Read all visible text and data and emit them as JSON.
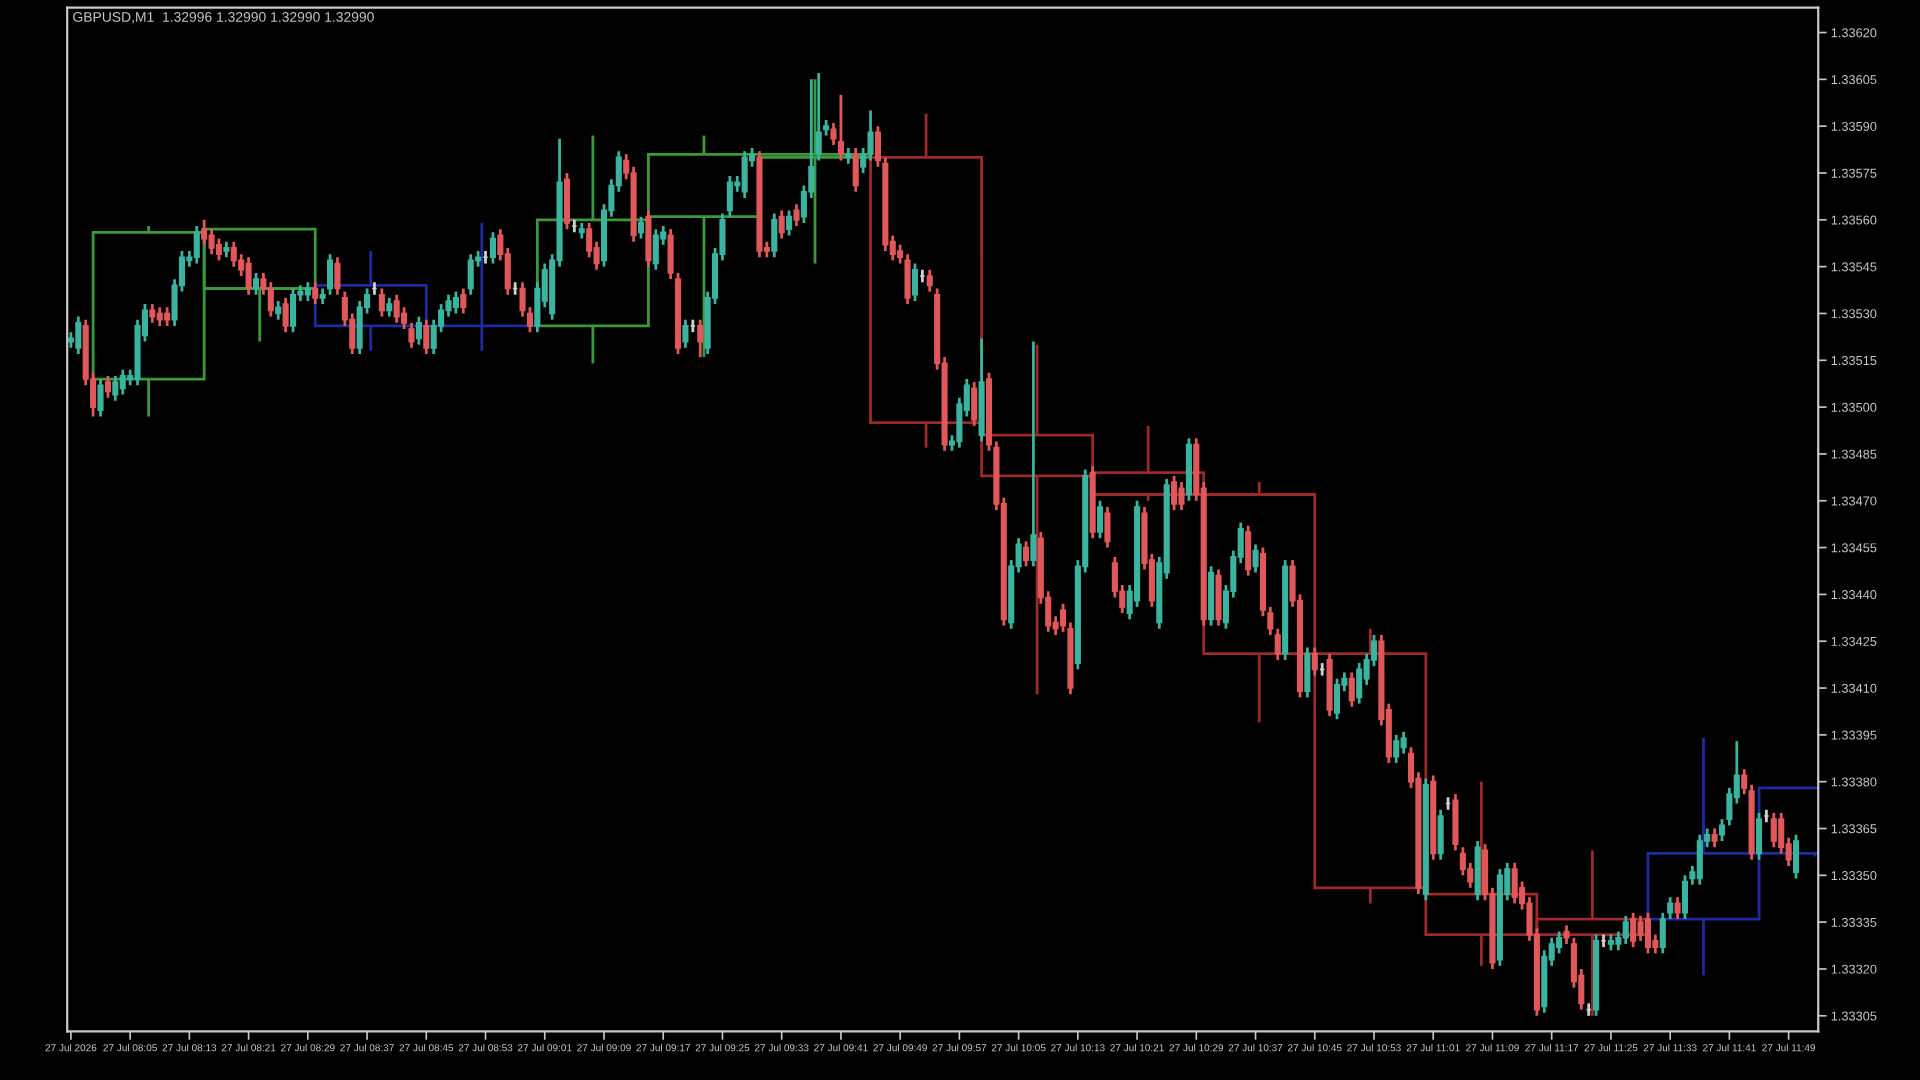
{
  "chart_data": {
    "type": "candlestick",
    "title": "GBPUSD,M1  1.32996 1.32990 1.32990 1.32990",
    "x": [
      "2026-07-27T07:57",
      "2026-07-27T07:58",
      "2026-07-27T07:59",
      "2026-07-27T08:00",
      "2026-07-27T08:01",
      "2026-07-27T08:02",
      "2026-07-27T08:03",
      "2026-07-27T08:04",
      "2026-07-27T08:05",
      "2026-07-27T08:06",
      "2026-07-27T08:07",
      "2026-07-27T08:08",
      "2026-07-27T08:09",
      "2026-07-27T08:10",
      "2026-07-27T08:11",
      "2026-07-27T08:12",
      "2026-07-27T08:13",
      "2026-07-27T08:14",
      "2026-07-27T08:15",
      "2026-07-27T08:16",
      "2026-07-27T08:17",
      "2026-07-27T08:18",
      "2026-07-27T08:19",
      "2026-07-27T08:20",
      "2026-07-27T08:21",
      "2026-07-27T08:22",
      "2026-07-27T08:23",
      "2026-07-27T08:24",
      "2026-07-27T08:25",
      "2026-07-27T08:26",
      "2026-07-27T08:27",
      "2026-07-27T08:28",
      "2026-07-27T08:29",
      "2026-07-27T08:30",
      "2026-07-27T08:31",
      "2026-07-27T08:32",
      "2026-07-27T08:33",
      "2026-07-27T08:34",
      "2026-07-27T08:35",
      "2026-07-27T08:36",
      "2026-07-27T08:37",
      "2026-07-27T08:38",
      "2026-07-27T08:39",
      "2026-07-27T08:40",
      "2026-07-27T08:41",
      "2026-07-27T08:42",
      "2026-07-27T08:43",
      "2026-07-27T08:44",
      "2026-07-27T08:45",
      "2026-07-27T08:46",
      "2026-07-27T08:47",
      "2026-07-27T08:48",
      "2026-07-27T08:49",
      "2026-07-27T08:50",
      "2026-07-27T08:51",
      "2026-07-27T08:52",
      "2026-07-27T08:53",
      "2026-07-27T08:54",
      "2026-07-27T08:55",
      "2026-07-27T08:56",
      "2026-07-27T08:57",
      "2026-07-27T08:58",
      "2026-07-27T08:59",
      "2026-07-27T09:00",
      "2026-07-27T09:01",
      "2026-07-27T09:02",
      "2026-07-27T09:03",
      "2026-07-27T09:04",
      "2026-07-27T09:05",
      "2026-07-27T09:06",
      "2026-07-27T09:07",
      "2026-07-27T09:08",
      "2026-07-27T09:09",
      "2026-07-27T09:10",
      "2026-07-27T09:11",
      "2026-07-27T09:12",
      "2026-07-27T09:13",
      "2026-07-27T09:14",
      "2026-07-27T09:15",
      "2026-07-27T09:16",
      "2026-07-27T09:17",
      "2026-07-27T09:18",
      "2026-07-27T09:19",
      "2026-07-27T09:20",
      "2026-07-27T09:21",
      "2026-07-27T09:22",
      "2026-07-27T09:23",
      "2026-07-27T09:24",
      "2026-07-27T09:25",
      "2026-07-27T09:26",
      "2026-07-27T09:27",
      "2026-07-27T09:28",
      "2026-07-27T09:29",
      "2026-07-27T09:30",
      "2026-07-27T09:31",
      "2026-07-27T09:32",
      "2026-07-27T09:33",
      "2026-07-27T09:34",
      "2026-07-27T09:35",
      "2026-07-27T09:36",
      "2026-07-27T09:37",
      "2026-07-27T09:38",
      "2026-07-27T09:39",
      "2026-07-27T09:40",
      "2026-07-27T09:41",
      "2026-07-27T09:42",
      "2026-07-27T09:43",
      "2026-07-27T09:44",
      "2026-07-27T09:45",
      "2026-07-27T09:46",
      "2026-07-27T09:47",
      "2026-07-27T09:48",
      "2026-07-27T09:49",
      "2026-07-27T09:50",
      "2026-07-27T09:51",
      "2026-07-27T09:52",
      "2026-07-27T09:53",
      "2026-07-27T09:54",
      "2026-07-27T09:55",
      "2026-07-27T09:56",
      "2026-07-27T09:57",
      "2026-07-27T09:58",
      "2026-07-27T09:59",
      "2026-07-27T10:00",
      "2026-07-27T10:01",
      "2026-07-27T10:02",
      "2026-07-27T10:03",
      "2026-07-27T10:04",
      "2026-07-27T10:05",
      "2026-07-27T10:06",
      "2026-07-27T10:07",
      "2026-07-27T10:08",
      "2026-07-27T10:09",
      "2026-07-27T10:10",
      "2026-07-27T10:11",
      "2026-07-27T10:12",
      "2026-07-27T10:13",
      "2026-07-27T10:14",
      "2026-07-27T10:15",
      "2026-07-27T10:16",
      "2026-07-27T10:17",
      "2026-07-27T10:18",
      "2026-07-27T10:19",
      "2026-07-27T10:20",
      "2026-07-27T10:21",
      "2026-07-27T10:22",
      "2026-07-27T10:23",
      "2026-07-27T10:24",
      "2026-07-27T10:25",
      "2026-07-27T10:26",
      "2026-07-27T10:27",
      "2026-07-27T10:28",
      "2026-07-27T10:29",
      "2026-07-27T10:30",
      "2026-07-27T10:31",
      "2026-07-27T10:32",
      "2026-07-27T10:33",
      "2026-07-27T10:34",
      "2026-07-27T10:35",
      "2026-07-27T10:36",
      "2026-07-27T10:37",
      "2026-07-27T10:38",
      "2026-07-27T10:39",
      "2026-07-27T10:40",
      "2026-07-27T10:41",
      "2026-07-27T10:42",
      "2026-07-27T10:43",
      "2026-07-27T10:44",
      "2026-07-27T10:45",
      "2026-07-27T10:46",
      "2026-07-27T10:47",
      "2026-07-27T10:48",
      "2026-07-27T10:49",
      "2026-07-27T10:50",
      "2026-07-27T10:51",
      "2026-07-27T10:52",
      "2026-07-27T10:53",
      "2026-07-27T10:54",
      "2026-07-27T10:55",
      "2026-07-27T10:56",
      "2026-07-27T10:57",
      "2026-07-27T10:58",
      "2026-07-27T10:59",
      "2026-07-27T11:00",
      "2026-07-27T11:01",
      "2026-07-27T11:02",
      "2026-07-27T11:03",
      "2026-07-27T11:04",
      "2026-07-27T11:05",
      "2026-07-27T11:06",
      "2026-07-27T11:07",
      "2026-07-27T11:08",
      "2026-07-27T11:09",
      "2026-07-27T11:10",
      "2026-07-27T11:11",
      "2026-07-27T11:12",
      "2026-07-27T11:13",
      "2026-07-27T11:14",
      "2026-07-27T11:15",
      "2026-07-27T11:16",
      "2026-07-27T11:17",
      "2026-07-27T11:18",
      "2026-07-27T11:19",
      "2026-07-27T11:20",
      "2026-07-27T11:21",
      "2026-07-27T11:22",
      "2026-07-27T11:23",
      "2026-07-27T11:24",
      "2026-07-27T11:25",
      "2026-07-27T11:26",
      "2026-07-27T11:27",
      "2026-07-27T11:28",
      "2026-07-27T11:29",
      "2026-07-27T11:30",
      "2026-07-27T11:31",
      "2026-07-27T11:32",
      "2026-07-27T11:33",
      "2026-07-27T11:34",
      "2026-07-27T11:35",
      "2026-07-27T11:36",
      "2026-07-27T11:37",
      "2026-07-27T11:38",
      "2026-07-27T11:39",
      "2026-07-27T11:40",
      "2026-07-27T11:41",
      "2026-07-27T11:42",
      "2026-07-27T11:43",
      "2026-07-27T11:44",
      "2026-07-27T11:45",
      "2026-07-27T11:46",
      "2026-07-27T11:47",
      "2026-07-27T11:48",
      "2026-07-27T11:49",
      "2026-07-27T11:50"
    ],
    "ohlc": [
      [
        1.33521,
        1.33524,
        1.33519,
        1.33522
      ],
      [
        1.33519,
        1.33529,
        1.33517,
        1.33527
      ],
      [
        1.33526,
        1.33528,
        1.33507,
        1.33509
      ],
      [
        1.33509,
        1.33511,
        1.33497,
        1.335
      ],
      [
        1.33499,
        1.33509,
        1.33497,
        1.33507
      ],
      [
        1.33508,
        1.3351,
        1.33503,
        1.33505
      ],
      [
        1.33504,
        1.3351,
        1.33502,
        1.33508
      ],
      [
        1.33506,
        1.33512,
        1.33504,
        1.3351
      ],
      [
        1.33509,
        1.33512,
        1.33507,
        1.3351
      ],
      [
        1.33509,
        1.33528,
        1.33507,
        1.33526
      ],
      [
        1.33523,
        1.33533,
        1.33521,
        1.33531
      ],
      [
        1.33531,
        1.33533,
        1.33527,
        1.33529
      ],
      [
        1.3353,
        1.33532,
        1.33526,
        1.33528
      ],
      [
        1.3353,
        1.33532,
        1.33526,
        1.33528
      ],
      [
        1.33528,
        1.33541,
        1.33526,
        1.33539
      ],
      [
        1.33539,
        1.3355,
        1.33537,
        1.33548
      ],
      [
        1.33547,
        1.3355,
        1.33545,
        1.33548
      ],
      [
        1.33548,
        1.33558,
        1.33546,
        1.33556
      ],
      [
        1.33557,
        1.3356,
        1.33552,
        1.33554
      ],
      [
        1.33555,
        1.33557,
        1.33549,
        1.33551
      ],
      [
        1.33552,
        1.33554,
        1.33547,
        1.33549
      ],
      [
        1.3355,
        1.33553,
        1.33548,
        1.33551
      ],
      [
        1.33551,
        1.33553,
        1.33545,
        1.33547
      ],
      [
        1.33547,
        1.33549,
        1.33542,
        1.33544
      ],
      [
        1.33546,
        1.33548,
        1.33536,
        1.33538
      ],
      [
        1.33538,
        1.33543,
        1.33536,
        1.33541
      ],
      [
        1.33541,
        1.33543,
        1.33536,
        1.33538
      ],
      [
        1.33538,
        1.3354,
        1.33529,
        1.33531
      ],
      [
        1.3353,
        1.33534,
        1.33528,
        1.33532
      ],
      [
        1.33533,
        1.33535,
        1.33524,
        1.33526
      ],
      [
        1.33526,
        1.33538,
        1.33524,
        1.33536
      ],
      [
        1.33536,
        1.33539,
        1.33534,
        1.33537
      ],
      [
        1.33536,
        1.3354,
        1.33534,
        1.33538
      ],
      [
        1.33538,
        1.3354,
        1.33533,
        1.33535
      ],
      [
        1.33535,
        1.33538,
        1.33533,
        1.33536
      ],
      [
        1.33538,
        1.33549,
        1.33536,
        1.33547
      ],
      [
        1.33546,
        1.33548,
        1.33536,
        1.33538
      ],
      [
        1.33535,
        1.33537,
        1.33526,
        1.33528
      ],
      [
        1.33528,
        1.3353,
        1.33517,
        1.33519
      ],
      [
        1.33519,
        1.33534,
        1.33517,
        1.33532
      ],
      [
        1.33532,
        1.33538,
        1.3353,
        1.33536
      ],
      [
        1.33538,
        1.3354,
        1.33536,
        1.33538
      ],
      [
        1.33536,
        1.33538,
        1.33529,
        1.33531
      ],
      [
        1.33531,
        1.33535,
        1.33529,
        1.33533
      ],
      [
        1.33534,
        1.33536,
        1.33527,
        1.33529
      ],
      [
        1.3353,
        1.33532,
        1.33525,
        1.33527
      ],
      [
        1.33525,
        1.33527,
        1.33519,
        1.33521
      ],
      [
        1.33522,
        1.33529,
        1.3352,
        1.33527
      ],
      [
        1.33526,
        1.33528,
        1.33517,
        1.33519
      ],
      [
        1.33519,
        1.33528,
        1.33517,
        1.33526
      ],
      [
        1.33526,
        1.33533,
        1.33524,
        1.33531
      ],
      [
        1.33531,
        1.33536,
        1.33529,
        1.33534
      ],
      [
        1.33532,
        1.33537,
        1.3353,
        1.33535
      ],
      [
        1.33536,
        1.33538,
        1.3353,
        1.33532
      ],
      [
        1.33538,
        1.33549,
        1.33536,
        1.33547
      ],
      [
        1.33547,
        1.3355,
        1.33545,
        1.33548
      ],
      [
        1.33548,
        1.3355,
        1.33546,
        1.33548
      ],
      [
        1.33548,
        1.33556,
        1.33546,
        1.33554
      ],
      [
        1.33555,
        1.33557,
        1.33547,
        1.33549
      ],
      [
        1.33549,
        1.33551,
        1.33536,
        1.33538
      ],
      [
        1.33538,
        1.3354,
        1.33536,
        1.33538
      ],
      [
        1.33538,
        1.3354,
        1.33529,
        1.33531
      ],
      [
        1.3353,
        1.33532,
        1.33524,
        1.33526
      ],
      [
        1.33526,
        1.3354,
        1.33524,
        1.33538
      ],
      [
        1.33534,
        1.33546,
        1.33532,
        1.33544
      ],
      [
        1.3353,
        1.33549,
        1.33528,
        1.33547
      ],
      [
        1.33547,
        1.33586,
        1.33545,
        1.33572
      ],
      [
        1.33573,
        1.33575,
        1.33557,
        1.33559
      ],
      [
        1.33558,
        1.3356,
        1.33556,
        1.33558
      ],
      [
        1.33556,
        1.33559,
        1.33554,
        1.33557
      ],
      [
        1.33557,
        1.33559,
        1.33548,
        1.3355
      ],
      [
        1.33551,
        1.33553,
        1.33544,
        1.33546
      ],
      [
        1.33547,
        1.33565,
        1.33545,
        1.33563
      ],
      [
        1.33563,
        1.33573,
        1.33561,
        1.33571
      ],
      [
        1.33571,
        1.33582,
        1.33569,
        1.3358
      ],
      [
        1.33579,
        1.33581,
        1.33573,
        1.33575
      ],
      [
        1.33575,
        1.33577,
        1.33553,
        1.33555
      ],
      [
        1.33556,
        1.33561,
        1.33554,
        1.33559
      ],
      [
        1.33561,
        1.33563,
        1.33545,
        1.33547
      ],
      [
        1.33546,
        1.33557,
        1.33544,
        1.33555
      ],
      [
        1.33554,
        1.33558,
        1.33552,
        1.33556
      ],
      [
        1.33555,
        1.33557,
        1.33541,
        1.33543
      ],
      [
        1.33541,
        1.33543,
        1.33517,
        1.33519
      ],
      [
        1.33521,
        1.33528,
        1.33519,
        1.33526
      ],
      [
        1.33526,
        1.33528,
        1.33524,
        1.33526
      ],
      [
        1.33526,
        1.33528,
        1.33516,
        1.33521
      ],
      [
        1.33519,
        1.33537,
        1.33517,
        1.33535
      ],
      [
        1.33535,
        1.33551,
        1.33533,
        1.33549
      ],
      [
        1.33549,
        1.33562,
        1.33547,
        1.3356
      ],
      [
        1.33563,
        1.33574,
        1.33561,
        1.33572
      ],
      [
        1.33571,
        1.33574,
        1.33569,
        1.33572
      ],
      [
        1.33569,
        1.33582,
        1.33567,
        1.3358
      ],
      [
        1.33579,
        1.33583,
        1.33577,
        1.33581
      ],
      [
        1.3358,
        1.33582,
        1.33548,
        1.3355
      ],
      [
        1.33551,
        1.33553,
        1.33548,
        1.3355
      ],
      [
        1.3355,
        1.33562,
        1.33548,
        1.3356
      ],
      [
        1.33561,
        1.33563,
        1.33554,
        1.33556
      ],
      [
        1.33557,
        1.33563,
        1.33555,
        1.33561
      ],
      [
        1.33563,
        1.33565,
        1.33558,
        1.3356
      ],
      [
        1.33561,
        1.33571,
        1.33559,
        1.33569
      ],
      [
        1.33569,
        1.33605,
        1.33567,
        1.33577
      ],
      [
        1.33581,
        1.33607,
        1.33579,
        1.33588
      ],
      [
        1.33589,
        1.33592,
        1.33587,
        1.3359
      ],
      [
        1.33589,
        1.33591,
        1.33584,
        1.33586
      ],
      [
        1.33585,
        1.336,
        1.33579,
        1.33581
      ],
      [
        1.3358,
        1.33583,
        1.33578,
        1.33581
      ],
      [
        1.33581,
        1.33583,
        1.33569,
        1.33571
      ],
      [
        1.33577,
        1.33583,
        1.33575,
        1.33581
      ],
      [
        1.33581,
        1.33595,
        1.33579,
        1.33588
      ],
      [
        1.33588,
        1.3359,
        1.33577,
        1.33579
      ],
      [
        1.33578,
        1.3358,
        1.3355,
        1.33552
      ],
      [
        1.33553,
        1.33555,
        1.33547,
        1.33549
      ],
      [
        1.3355,
        1.33552,
        1.33546,
        1.33548
      ],
      [
        1.33547,
        1.33549,
        1.33533,
        1.33535
      ],
      [
        1.33536,
        1.33546,
        1.33534,
        1.33544
      ],
      [
        1.33542,
        1.33544,
        1.3354,
        1.33542
      ],
      [
        1.33542,
        1.33544,
        1.33537,
        1.33539
      ],
      [
        1.33536,
        1.33538,
        1.33512,
        1.33514
      ],
      [
        1.33514,
        1.33516,
        1.33486,
        1.33488
      ],
      [
        1.33488,
        1.33491,
        1.33486,
        1.33489
      ],
      [
        1.33489,
        1.33503,
        1.33487,
        1.33501
      ],
      [
        1.33499,
        1.33509,
        1.33497,
        1.33507
      ],
      [
        1.33506,
        1.33508,
        1.33494,
        1.33496
      ],
      [
        1.33491,
        1.33522,
        1.33489,
        1.33508
      ],
      [
        1.33509,
        1.33511,
        1.33486,
        1.33488
      ],
      [
        1.33487,
        1.33489,
        1.33467,
        1.33469
      ],
      [
        1.33469,
        1.33471,
        1.3343,
        1.33432
      ],
      [
        1.33431,
        1.33451,
        1.33429,
        1.33449
      ],
      [
        1.33449,
        1.33458,
        1.33447,
        1.33456
      ],
      [
        1.33455,
        1.33457,
        1.33449,
        1.33451
      ],
      [
        1.33451,
        1.33521,
        1.33449,
        1.33459
      ],
      [
        1.33458,
        1.3346,
        1.33437,
        1.33439
      ],
      [
        1.33439,
        1.33441,
        1.33428,
        1.3343
      ],
      [
        1.33431,
        1.33433,
        1.33427,
        1.33429
      ],
      [
        1.33435,
        1.33437,
        1.33428,
        1.3343
      ],
      [
        1.33429,
        1.33431,
        1.33408,
        1.3341
      ],
      [
        1.33418,
        1.33451,
        1.33416,
        1.33449
      ],
      [
        1.33449,
        1.3348,
        1.33447,
        1.33478
      ],
      [
        1.33479,
        1.33481,
        1.33458,
        1.3346
      ],
      [
        1.3346,
        1.3347,
        1.33458,
        1.33468
      ],
      [
        1.33466,
        1.33468,
        1.33455,
        1.33457
      ],
      [
        1.3345,
        1.33452,
        1.33439,
        1.33441
      ],
      [
        1.33441,
        1.33443,
        1.33434,
        1.33436
      ],
      [
        1.33434,
        1.33443,
        1.33432,
        1.33441
      ],
      [
        1.33438,
        1.3347,
        1.33436,
        1.33468
      ],
      [
        1.33466,
        1.33468,
        1.33448,
        1.3345
      ],
      [
        1.33451,
        1.33453,
        1.33436,
        1.33438
      ],
      [
        1.33431,
        1.33452,
        1.33429,
        1.3345
      ],
      [
        1.33447,
        1.33477,
        1.33445,
        1.33475
      ],
      [
        1.33476,
        1.33478,
        1.33467,
        1.33469
      ],
      [
        1.33474,
        1.33476,
        1.33467,
        1.33469
      ],
      [
        1.33472,
        1.3349,
        1.3347,
        1.33488
      ],
      [
        1.33488,
        1.3349,
        1.3347,
        1.33472
      ],
      [
        1.33474,
        1.33476,
        1.3343,
        1.33432
      ],
      [
        1.33432,
        1.33449,
        1.3343,
        1.33447
      ],
      [
        1.33446,
        1.33448,
        1.3343,
        1.33432
      ],
      [
        1.33431,
        1.33443,
        1.33429,
        1.33441
      ],
      [
        1.33441,
        1.33454,
        1.33439,
        1.33452
      ],
      [
        1.33452,
        1.33463,
        1.3345,
        1.33461
      ],
      [
        1.3346,
        1.33462,
        1.33446,
        1.33448
      ],
      [
        1.33449,
        1.33456,
        1.33447,
        1.33454
      ],
      [
        1.33453,
        1.33455,
        1.33433,
        1.33435
      ],
      [
        1.33434,
        1.33436,
        1.33427,
        1.33429
      ],
      [
        1.33427,
        1.33429,
        1.33419,
        1.33421
      ],
      [
        1.33421,
        1.33451,
        1.33419,
        1.33449
      ],
      [
        1.33449,
        1.33451,
        1.33436,
        1.33438
      ],
      [
        1.33438,
        1.3344,
        1.33407,
        1.33409
      ],
      [
        1.33409,
        1.33423,
        1.33407,
        1.33421
      ],
      [
        1.33421,
        1.33423,
        1.33414,
        1.33416
      ],
      [
        1.33416,
        1.33418,
        1.33414,
        1.33416
      ],
      [
        1.33419,
        1.33421,
        1.33401,
        1.33403
      ],
      [
        1.33402,
        1.33413,
        1.334,
        1.33411
      ],
      [
        1.33411,
        1.33415,
        1.33409,
        1.33413
      ],
      [
        1.33413,
        1.33415,
        1.33404,
        1.33406
      ],
      [
        1.33407,
        1.33418,
        1.33405,
        1.33416
      ],
      [
        1.33413,
        1.33421,
        1.33411,
        1.33419
      ],
      [
        1.33419,
        1.33427,
        1.33417,
        1.33425
      ],
      [
        1.33425,
        1.33427,
        1.33398,
        1.334
      ],
      [
        1.33403,
        1.33405,
        1.33386,
        1.33388
      ],
      [
        1.33388,
        1.33395,
        1.33386,
        1.33393
      ],
      [
        1.33391,
        1.33396,
        1.33389,
        1.33394
      ],
      [
        1.33389,
        1.33391,
        1.33378,
        1.3338
      ],
      [
        1.33381,
        1.33383,
        1.33344,
        1.33346
      ],
      [
        1.33344,
        1.33381,
        1.33342,
        1.33379
      ],
      [
        1.3338,
        1.33382,
        1.33355,
        1.33357
      ],
      [
        1.33357,
        1.33371,
        1.33355,
        1.33369
      ],
      [
        1.33373,
        1.33375,
        1.33371,
        1.33373
      ],
      [
        1.33374,
        1.33376,
        1.33358,
        1.3336
      ],
      [
        1.33357,
        1.33359,
        1.3335,
        1.33352
      ],
      [
        1.33352,
        1.33354,
        1.33346,
        1.33348
      ],
      [
        1.33344,
        1.33361,
        1.33342,
        1.33359
      ],
      [
        1.33358,
        1.3336,
        1.33342,
        1.33344
      ],
      [
        1.33344,
        1.33346,
        1.3332,
        1.33322
      ],
      [
        1.33323,
        1.33352,
        1.33321,
        1.3335
      ],
      [
        1.33344,
        1.33354,
        1.33342,
        1.33352
      ],
      [
        1.33352,
        1.33354,
        1.33341,
        1.33343
      ],
      [
        1.33346,
        1.33348,
        1.33339,
        1.33341
      ],
      [
        1.33341,
        1.33343,
        1.33329,
        1.33331
      ],
      [
        1.33331,
        1.33333,
        1.33305,
        1.33307
      ],
      [
        1.33308,
        1.33326,
        1.33306,
        1.33324
      ],
      [
        1.33323,
        1.3333,
        1.33321,
        1.33328
      ],
      [
        1.33327,
        1.33332,
        1.33325,
        1.3333
      ],
      [
        1.33332,
        1.33334,
        1.33328,
        1.3333
      ],
      [
        1.33328,
        1.3333,
        1.33314,
        1.33316
      ],
      [
        1.33318,
        1.3332,
        1.33307,
        1.33309
      ],
      [
        1.33307,
        1.33309,
        1.33305,
        1.33307
      ],
      [
        1.33307,
        1.33331,
        1.33305,
        1.33329
      ],
      [
        1.33329,
        1.33331,
        1.33327,
        1.33329
      ],
      [
        1.33328,
        1.33331,
        1.33326,
        1.33329
      ],
      [
        1.33328,
        1.33332,
        1.33326,
        1.3333
      ],
      [
        1.3333,
        1.33337,
        1.33328,
        1.33335
      ],
      [
        1.33336,
        1.33338,
        1.33327,
        1.33329
      ],
      [
        1.33335,
        1.33337,
        1.33329,
        1.33331
      ],
      [
        1.33336,
        1.33338,
        1.33325,
        1.33327
      ],
      [
        1.33329,
        1.33331,
        1.33325,
        1.33327
      ],
      [
        1.33327,
        1.33338,
        1.33325,
        1.33336
      ],
      [
        1.33338,
        1.33343,
        1.33336,
        1.33341
      ],
      [
        1.33341,
        1.33343,
        1.33336,
        1.33338
      ],
      [
        1.33338,
        1.3335,
        1.33336,
        1.33348
      ],
      [
        1.33349,
        1.33353,
        1.33347,
        1.33351
      ],
      [
        1.33349,
        1.33363,
        1.33347,
        1.33361
      ],
      [
        1.33361,
        1.33365,
        1.33359,
        1.33363
      ],
      [
        1.33363,
        1.33365,
        1.33359,
        1.33361
      ],
      [
        1.33363,
        1.33368,
        1.33361,
        1.33366
      ],
      [
        1.33368,
        1.33378,
        1.33366,
        1.33376
      ],
      [
        1.33375,
        1.33393,
        1.33373,
        1.33382
      ],
      [
        1.33382,
        1.33384,
        1.33376,
        1.33378
      ],
      [
        1.33377,
        1.33379,
        1.33355,
        1.33357
      ],
      [
        1.33357,
        1.3337,
        1.33355,
        1.33368
      ],
      [
        1.33369,
        1.33371,
        1.33367,
        1.33369
      ],
      [
        1.33368,
        1.3337,
        1.33359,
        1.33361
      ],
      [
        1.33368,
        1.3337,
        1.33357,
        1.33359
      ],
      [
        1.3336,
        1.33362,
        1.33353,
        1.33355
      ],
      [
        1.33351,
        1.33363,
        1.33349,
        1.33361
      ]
    ],
    "colors": [
      "#3bb39f",
      "#3bb39f",
      "#e0585a",
      "#e0585a",
      "#3bb39f",
      "#e0585a",
      "#3bb39f",
      "#3bb39f",
      "#3bb39f",
      "#3bb39f",
      "#3bb39f",
      "#e0585a",
      "#e0585a",
      "#e0585a",
      "#3bb39f",
      "#3bb39f",
      "#3bb39f",
      "#3bb39f",
      "#e0585a",
      "#e0585a",
      "#e0585a",
      "#3bb39f",
      "#e0585a",
      "#e0585a",
      "#e0585a",
      "#3bb39f",
      "#e0585a",
      "#e0585a",
      "#3bb39f",
      "#e0585a",
      "#3bb39f",
      "#3bb39f",
      "#3bb39f",
      "#e0585a",
      "#3bb39f",
      "#3bb39f",
      "#e0585a",
      "#e0585a",
      "#e0585a",
      "#3bb39f",
      "#3bb39f",
      "#d0d0d0",
      "#e0585a",
      "#3bb39f",
      "#e0585a",
      "#e0585a",
      "#e0585a",
      "#3bb39f",
      "#e0585a",
      "#3bb39f",
      "#3bb39f",
      "#3bb39f",
      "#3bb39f",
      "#e0585a",
      "#3bb39f",
      "#3bb39f",
      "#d0d0d0",
      "#3bb39f",
      "#e0585a",
      "#e0585a",
      "#d0d0d0",
      "#e0585a",
      "#e0585a",
      "#3bb39f",
      "#3bb39f",
      "#3bb39f",
      "#3bb39f",
      "#e0585a",
      "#d0d0d0",
      "#3bb39f",
      "#e0585a",
      "#e0585a",
      "#3bb39f",
      "#3bb39f",
      "#3bb39f",
      "#e0585a",
      "#e0585a",
      "#3bb39f",
      "#e0585a",
      "#3bb39f",
      "#3bb39f",
      "#e0585a",
      "#e0585a",
      "#3bb39f",
      "#d0d0d0",
      "#e0585a",
      "#3bb39f",
      "#3bb39f",
      "#3bb39f",
      "#3bb39f",
      "#3bb39f",
      "#3bb39f",
      "#3bb39f",
      "#e0585a",
      "#e0585a",
      "#3bb39f",
      "#e0585a",
      "#3bb39f",
      "#e0585a",
      "#3bb39f",
      "#3bb39f",
      "#3bb39f",
      "#3bb39f",
      "#e0585a",
      "#e0585a",
      "#3bb39f",
      "#e0585a",
      "#3bb39f",
      "#3bb39f",
      "#e0585a",
      "#e0585a",
      "#e0585a",
      "#e0585a",
      "#e0585a",
      "#3bb39f",
      "#d0d0d0",
      "#e0585a",
      "#e0585a",
      "#e0585a",
      "#3bb39f",
      "#3bb39f",
      "#3bb39f",
      "#e0585a",
      "#3bb39f",
      "#e0585a",
      "#e0585a",
      "#e0585a",
      "#3bb39f",
      "#3bb39f",
      "#e0585a",
      "#3bb39f",
      "#e0585a",
      "#e0585a",
      "#e0585a",
      "#e0585a",
      "#e0585a",
      "#3bb39f",
      "#3bb39f",
      "#e0585a",
      "#3bb39f",
      "#e0585a",
      "#e0585a",
      "#e0585a",
      "#3bb39f",
      "#3bb39f",
      "#e0585a",
      "#e0585a",
      "#3bb39f",
      "#3bb39f",
      "#e0585a",
      "#e0585a",
      "#3bb39f",
      "#e0585a",
      "#e0585a",
      "#3bb39f",
      "#e0585a",
      "#3bb39f",
      "#3bb39f",
      "#3bb39f",
      "#e0585a",
      "#3bb39f",
      "#e0585a",
      "#e0585a",
      "#e0585a",
      "#3bb39f",
      "#e0585a",
      "#e0585a",
      "#3bb39f",
      "#e0585a",
      "#d0d0d0",
      "#e0585a",
      "#3bb39f",
      "#3bb39f",
      "#e0585a",
      "#3bb39f",
      "#3bb39f",
      "#3bb39f",
      "#e0585a",
      "#e0585a",
      "#3bb39f",
      "#3bb39f",
      "#e0585a",
      "#e0585a",
      "#3bb39f",
      "#e0585a",
      "#3bb39f",
      "#d0d0d0",
      "#e0585a",
      "#e0585a",
      "#e0585a",
      "#3bb39f",
      "#e0585a",
      "#e0585a",
      "#3bb39f",
      "#3bb39f",
      "#e0585a",
      "#e0585a",
      "#e0585a",
      "#e0585a",
      "#3bb39f",
      "#3bb39f",
      "#3bb39f",
      "#e0585a",
      "#e0585a",
      "#e0585a",
      "#d0d0d0",
      "#3bb39f",
      "#d0d0d0",
      "#3bb39f",
      "#3bb39f",
      "#3bb39f",
      "#e0585a",
      "#e0585a",
      "#e0585a",
      "#e0585a",
      "#3bb39f",
      "#3bb39f",
      "#e0585a",
      "#3bb39f",
      "#3bb39f",
      "#3bb39f",
      "#3bb39f",
      "#e0585a",
      "#3bb39f",
      "#3bb39f",
      "#3bb39f",
      "#e0585a",
      "#e0585a",
      "#3bb39f",
      "#d0d0d0",
      "#e0585a",
      "#e0585a",
      "#e0585a",
      "#3bb39f"
    ],
    "series": [
      {
        "type": "candlestick",
        "x": [
          "2026-07-27T08:07:30",
          "2026-07-27T08:22:30",
          "2026-07-27T08:37:30",
          "2026-07-27T08:52:30",
          "2026-07-27T09:07:30",
          "2026-07-27T09:22:30",
          "2026-07-27T09:37:30",
          "2026-07-27T09:52:30",
          "2026-07-27T10:07:30",
          "2026-07-27T10:22:30",
          "2026-07-27T10:37:30",
          "2026-07-27T10:52:30",
          "2026-07-27T11:07:30",
          "2026-07-27T11:22:30",
          "2026-07-27T11:37:30",
          "2026-07-27T11:52:30"
        ],
        "ohlc": [
          [
            1.33509,
            1.33558,
            1.33497,
            1.33556
          ],
          [
            1.33538,
            1.33557,
            1.33521,
            1.33557
          ],
          [
            1.33526,
            1.3355,
            1.33518,
            1.33539
          ],
          [
            1.33526,
            1.33559,
            1.33518,
            1.33526
          ],
          [
            1.33526,
            1.33587,
            1.33514,
            1.3356
          ],
          [
            1.33561,
            1.33587,
            1.33516,
            1.33581
          ],
          [
            1.3358,
            1.33605,
            1.33546,
            1.33581
          ],
          [
            1.3358,
            1.33594,
            1.33487,
            1.33495
          ],
          [
            1.33491,
            1.3352,
            1.33408,
            1.33478
          ],
          [
            1.33479,
            1.33494,
            1.3347,
            1.33472
          ],
          [
            1.33472,
            1.33476,
            1.33399,
            1.33421
          ],
          [
            1.33421,
            1.33429,
            1.33341,
            1.33346
          ],
          [
            1.33344,
            1.3338,
            1.33321,
            1.33331
          ],
          [
            1.33336,
            1.33358,
            1.33305,
            1.33331
          ],
          [
            1.33336,
            1.33394,
            1.33318,
            1.33357
          ],
          [
            1.33357,
            1.33378,
            1.33356,
            1.33378
          ]
        ],
        "colors": [
          "#3a9a3a",
          "#3a9a3a",
          "#1e2aa0",
          "#1e2aa0",
          "#3a9a3a",
          "#3a9a3a",
          "#3a9a3a",
          "#9c2a2a",
          "#9c2a2a",
          "#9c2a2a",
          "#9c2a2a",
          "#9c2a2a",
          "#9c2a2a",
          "#9c2a2a",
          "#1e2aa0",
          "#1e2aa0"
        ]
      }
    ],
    "xlim": [
      "2026-07-27T07:56:30",
      "2026-07-27T11:53"
    ],
    "xticks": [
      {
        "value": "2026-07-27T07:57",
        "label": "27 Jul 2026"
      },
      {
        "value": "2026-07-27T08:05",
        "label": "27 Jul 08:05"
      },
      {
        "value": "2026-07-27T08:13",
        "label": "27 Jul 08:13"
      },
      {
        "value": "2026-07-27T08:21",
        "label": "27 Jul 08:21"
      },
      {
        "value": "2026-07-27T08:29",
        "label": "27 Jul 08:29"
      },
      {
        "value": "2026-07-27T08:37",
        "label": "27 Jul 08:37"
      },
      {
        "value": "2026-07-27T08:45",
        "label": "27 Jul 08:45"
      },
      {
        "value": "2026-07-27T08:53",
        "label": "27 Jul 08:53"
      },
      {
        "value": "2026-07-27T09:01",
        "label": "27 Jul 09:01"
      },
      {
        "value": "2026-07-27T09:09",
        "label": "27 Jul 09:09"
      },
      {
        "value": "2026-07-27T09:17",
        "label": "27 Jul 09:17"
      },
      {
        "value": "2026-07-27T09:25",
        "label": "27 Jul 09:25"
      },
      {
        "value": "2026-07-27T09:33",
        "label": "27 Jul 09:33"
      },
      {
        "value": "2026-07-27T09:41",
        "label": "27 Jul 09:41"
      },
      {
        "value": "2026-07-27T09:49",
        "label": "27 Jul 09:49"
      },
      {
        "value": "2026-07-27T09:57",
        "label": "27 Jul 09:57"
      },
      {
        "value": "2026-07-27T10:05",
        "label": "27 Jul 10:05"
      },
      {
        "value": "2026-07-27T10:13",
        "label": "27 Jul 10:13"
      },
      {
        "value": "2026-07-27T10:21",
        "label": "27 Jul 10:21"
      },
      {
        "value": "2026-07-27T10:29",
        "label": "27 Jul 10:29"
      },
      {
        "value": "2026-07-27T10:37",
        "label": "27 Jul 10:37"
      },
      {
        "value": "2026-07-27T10:45",
        "label": "27 Jul 10:45"
      },
      {
        "value": "2026-07-27T10:53",
        "label": "27 Jul 10:53"
      },
      {
        "value": "2026-07-27T11:01",
        "label": "27 Jul 11:01"
      },
      {
        "value": "2026-07-27T11:09",
        "label": "27 Jul 11:09"
      },
      {
        "value": "2026-07-27T11:17",
        "label": "27 Jul 11:17"
      },
      {
        "value": "2026-07-27T11:25",
        "label": "27 Jul 11:25"
      },
      {
        "value": "2026-07-27T11:33",
        "label": "27 Jul 11:33"
      },
      {
        "value": "2026-07-27T11:41",
        "label": "27 Jul 11:41"
      },
      {
        "value": "2026-07-27T11:49",
        "label": "27 Jul 11:49"
      }
    ],
    "ylim": [
      1.333,
      1.33628
    ],
    "yticks": [
      1.33305,
      {
        "value": 1.3332,
        "label": "1.33320"
      },
      1.33335,
      {
        "value": 1.3335,
        "label": "1.33350"
      },
      1.33365,
      {
        "value": 1.3338,
        "label": "1.33380"
      },
      1.33395,
      {
        "value": 1.3341,
        "label": "1.33410"
      },
      1.33425,
      {
        "value": 1.3344,
        "label": "1.33440"
      },
      1.33455,
      {
        "value": 1.3347,
        "label": "1.33470"
      },
      1.33485,
      {
        "value": 1.335,
        "label": "1.33500"
      },
      1.33515,
      {
        "value": 1.3353,
        "label": "1.33530"
      },
      1.33545,
      {
        "value": 1.3356,
        "label": "1.33560"
      },
      1.33575,
      {
        "value": 1.3359,
        "label": "1.33590"
      },
      1.33605,
      {
        "value": 1.3362,
        "label": "1.33620"
      }
    ],
    "grid": false
  }
}
